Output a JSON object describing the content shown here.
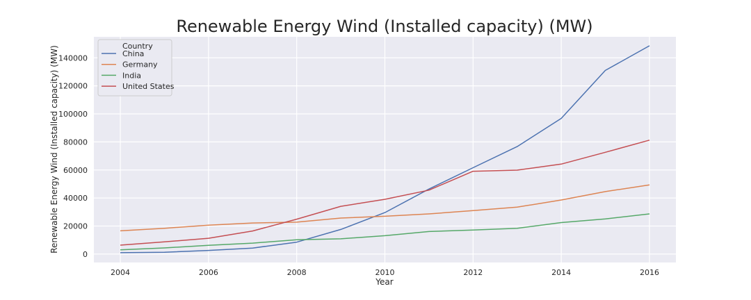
{
  "chart_data": {
    "type": "line",
    "title": "Renewable Energy Wind  (Installed capacity) (MW)",
    "xlabel": "Year",
    "ylabel": "Renewable Energy Wind  (Installed capacity) (MW)",
    "x": [
      2004,
      2005,
      2006,
      2007,
      2008,
      2009,
      2010,
      2011,
      2012,
      2013,
      2014,
      2015,
      2016
    ],
    "xlim": [
      2003.4,
      2016.6
    ],
    "ylim": [
      -6000,
      155000
    ],
    "xticks": [
      2004,
      2006,
      2008,
      2010,
      2012,
      2014,
      2016
    ],
    "yticks": [
      0,
      20000,
      40000,
      60000,
      80000,
      100000,
      120000,
      140000
    ],
    "grid": true,
    "background": "#eaeaf2",
    "legend": {
      "title": "Country",
      "placement": "top-left"
    },
    "series": [
      {
        "name": "China",
        "color": "#4c72b0",
        "values": [
          1000,
          1300,
          2600,
          4300,
          8500,
          17600,
          29600,
          46400,
          61600,
          76700,
          96800,
          131000,
          148600
        ]
      },
      {
        "name": "Germany",
        "color": "#dd8452",
        "values": [
          16600,
          18400,
          20600,
          22200,
          22800,
          25700,
          27000,
          28700,
          31000,
          33500,
          38600,
          44600,
          49400
        ]
      },
      {
        "name": "India",
        "color": "#55a868",
        "values": [
          3000,
          4400,
          6300,
          7800,
          10200,
          10900,
          13100,
          16100,
          17200,
          18400,
          22500,
          25100,
          28700
        ]
      },
      {
        "name": "United States",
        "color": "#c44e52",
        "values": [
          6400,
          8700,
          11300,
          16500,
          24900,
          34100,
          39100,
          45600,
          59100,
          59900,
          64200,
          72600,
          81300
        ]
      }
    ]
  }
}
